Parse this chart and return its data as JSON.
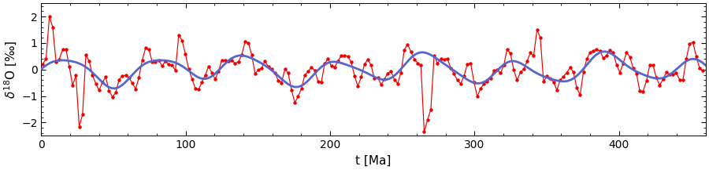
{
  "xlabel": "t [Ma]",
  "ylabel": "$\\delta^{18}$O [‰]",
  "xlim": [
    0,
    460
  ],
  "ylim": [
    -2.5,
    2.5
  ],
  "yticks": [
    -2,
    -1,
    0,
    1,
    2
  ],
  "xticks": [
    0,
    100,
    200,
    300,
    400
  ],
  "red_color": "#EE0000",
  "blue_color": "#5566CC",
  "bg_color": "#FFFFFF",
  "figsize": [
    9.0,
    2.17
  ],
  "dpi": 100,
  "red_lw": 0.85,
  "blue_lw": 2.0,
  "marker_size": 3.2
}
